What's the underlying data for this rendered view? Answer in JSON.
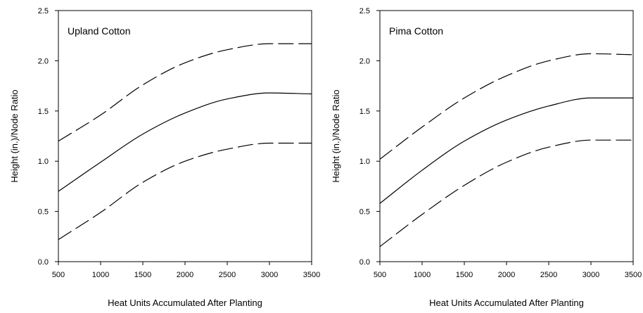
{
  "chart_data": [
    {
      "type": "line",
      "title": "Upland Cotton",
      "xlabel": "Heat Units Accumulated After Planting",
      "ylabel": "Height (in.)/Node Ratio",
      "xlim": [
        500,
        3500
      ],
      "ylim": [
        0.0,
        2.5
      ],
      "xticks": [
        "500",
        "1000",
        "1500",
        "2000",
        "2500",
        "3000",
        "3500"
      ],
      "yticks": [
        "0.0",
        "0.5",
        "1.0",
        "1.5",
        "2.0",
        "2.5"
      ],
      "grid": false,
      "x": [
        500,
        1000,
        1500,
        2000,
        2500,
        3000,
        3500
      ],
      "series": [
        {
          "style": "dashed",
          "values": [
            1.2,
            1.46,
            1.76,
            1.98,
            2.11,
            2.17,
            2.17
          ]
        },
        {
          "style": "solid",
          "values": [
            0.7,
            0.99,
            1.27,
            1.48,
            1.62,
            1.68,
            1.67
          ]
        },
        {
          "style": "dashed",
          "values": [
            0.22,
            0.49,
            0.79,
            1.0,
            1.12,
            1.18,
            1.18
          ]
        }
      ]
    },
    {
      "type": "line",
      "title": "Pima Cotton",
      "xlabel": "Heat Units Accumulated After Planting",
      "ylabel": "Height (in.)/Node Ratio",
      "xlim": [
        500,
        3500
      ],
      "ylim": [
        0.0,
        2.5
      ],
      "xticks": [
        "500",
        "1000",
        "1500",
        "2000",
        "2500",
        "3000",
        "3500"
      ],
      "yticks": [
        "0.0",
        "0.5",
        "1.0",
        "1.5",
        "2.0",
        "2.5"
      ],
      "grid": false,
      "x": [
        500,
        1000,
        1500,
        2000,
        2500,
        3000,
        3500
      ],
      "series": [
        {
          "style": "dashed",
          "values": [
            1.02,
            1.34,
            1.63,
            1.85,
            2.0,
            2.07,
            2.06
          ]
        },
        {
          "style": "solid",
          "values": [
            0.58,
            0.91,
            1.2,
            1.41,
            1.55,
            1.63,
            1.63
          ]
        },
        {
          "style": "dashed",
          "values": [
            0.15,
            0.47,
            0.76,
            0.99,
            1.14,
            1.21,
            1.21
          ]
        }
      ]
    }
  ]
}
